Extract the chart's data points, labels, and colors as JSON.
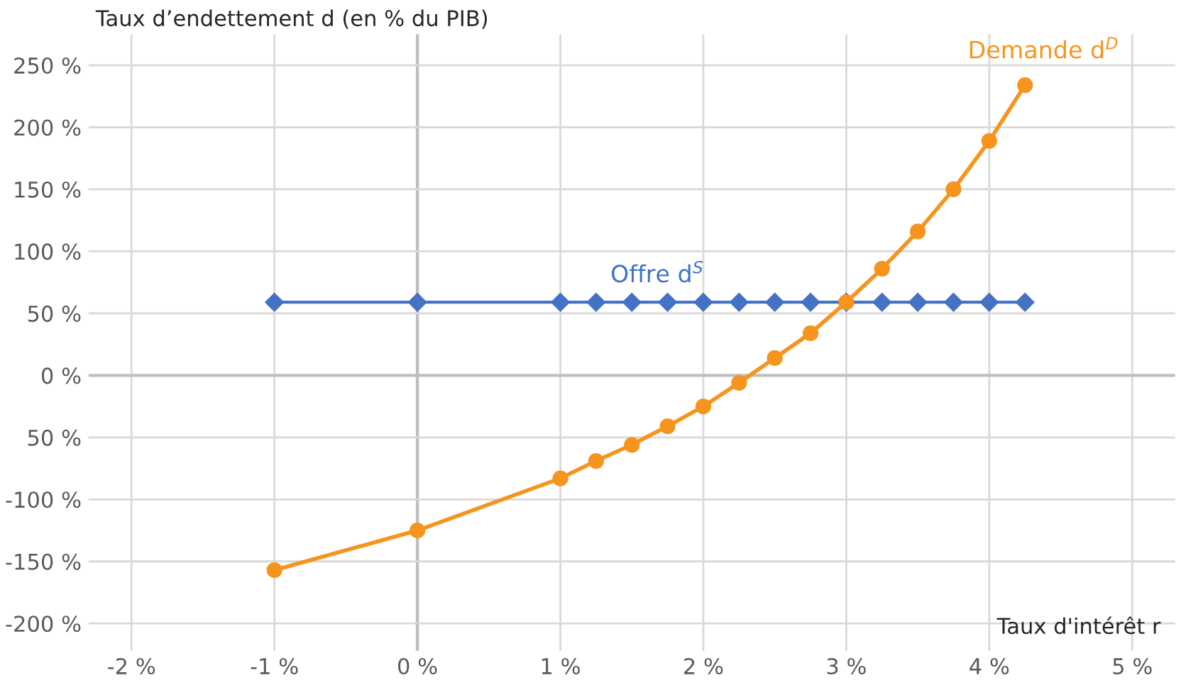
{
  "chart_data": {
    "type": "line",
    "ylabel": "Taux d’endettement d (en % du PIB)",
    "xlabel": "Taux d'intérêt r",
    "x": [
      -1,
      0,
      1,
      1.25,
      1.5,
      1.75,
      2,
      2.25,
      2.5,
      2.75,
      3,
      3.25,
      3.5,
      3.75,
      4,
      4.25
    ],
    "series": [
      {
        "name": "Offre d$^{S}$",
        "color": "#4472c4",
        "marker": "diamond",
        "values": [
          59,
          59,
          59,
          59,
          59,
          59,
          59,
          59,
          59,
          59,
          59,
          59,
          59,
          59,
          59,
          59
        ]
      },
      {
        "name": "Demande d$^{D}$",
        "color": "#f7941d",
        "marker": "circle",
        "values": [
          -157,
          -125,
          -83,
          -69,
          -56,
          -41,
          -25,
          -6,
          14,
          34,
          59,
          86,
          116,
          150,
          189,
          234
        ]
      }
    ],
    "xlim": [
      -2.3,
      5.3
    ],
    "ylim": [
      -222,
      275
    ],
    "xticks": [
      {
        "value": -2,
        "label": "-2 %"
      },
      {
        "value": -1,
        "label": "-1 %"
      },
      {
        "value": 0,
        "label": "0 %"
      },
      {
        "value": 1,
        "label": "1 %"
      },
      {
        "value": 2,
        "label": "2 %"
      },
      {
        "value": 3,
        "label": "3 %"
      },
      {
        "value": 4,
        "label": "4 %"
      },
      {
        "value": 5,
        "label": "5 %"
      }
    ],
    "yticks": [
      {
        "value": -200,
        "label": "-200 %"
      },
      {
        "value": -150,
        "label": "-150 %"
      },
      {
        "value": -100,
        "label": "-100 %"
      },
      {
        "value": -50,
        "label": "50 %"
      },
      {
        "value": 0,
        "label": "0 %"
      },
      {
        "value": 50,
        "label": "50 %"
      },
      {
        "value": 100,
        "label": "100 %"
      },
      {
        "value": 150,
        "label": "150 %"
      },
      {
        "value": 200,
        "label": "200 %"
      },
      {
        "value": 250,
        "label": "250 %"
      }
    ],
    "grid": true,
    "legend": false,
    "line_style": "solid"
  }
}
